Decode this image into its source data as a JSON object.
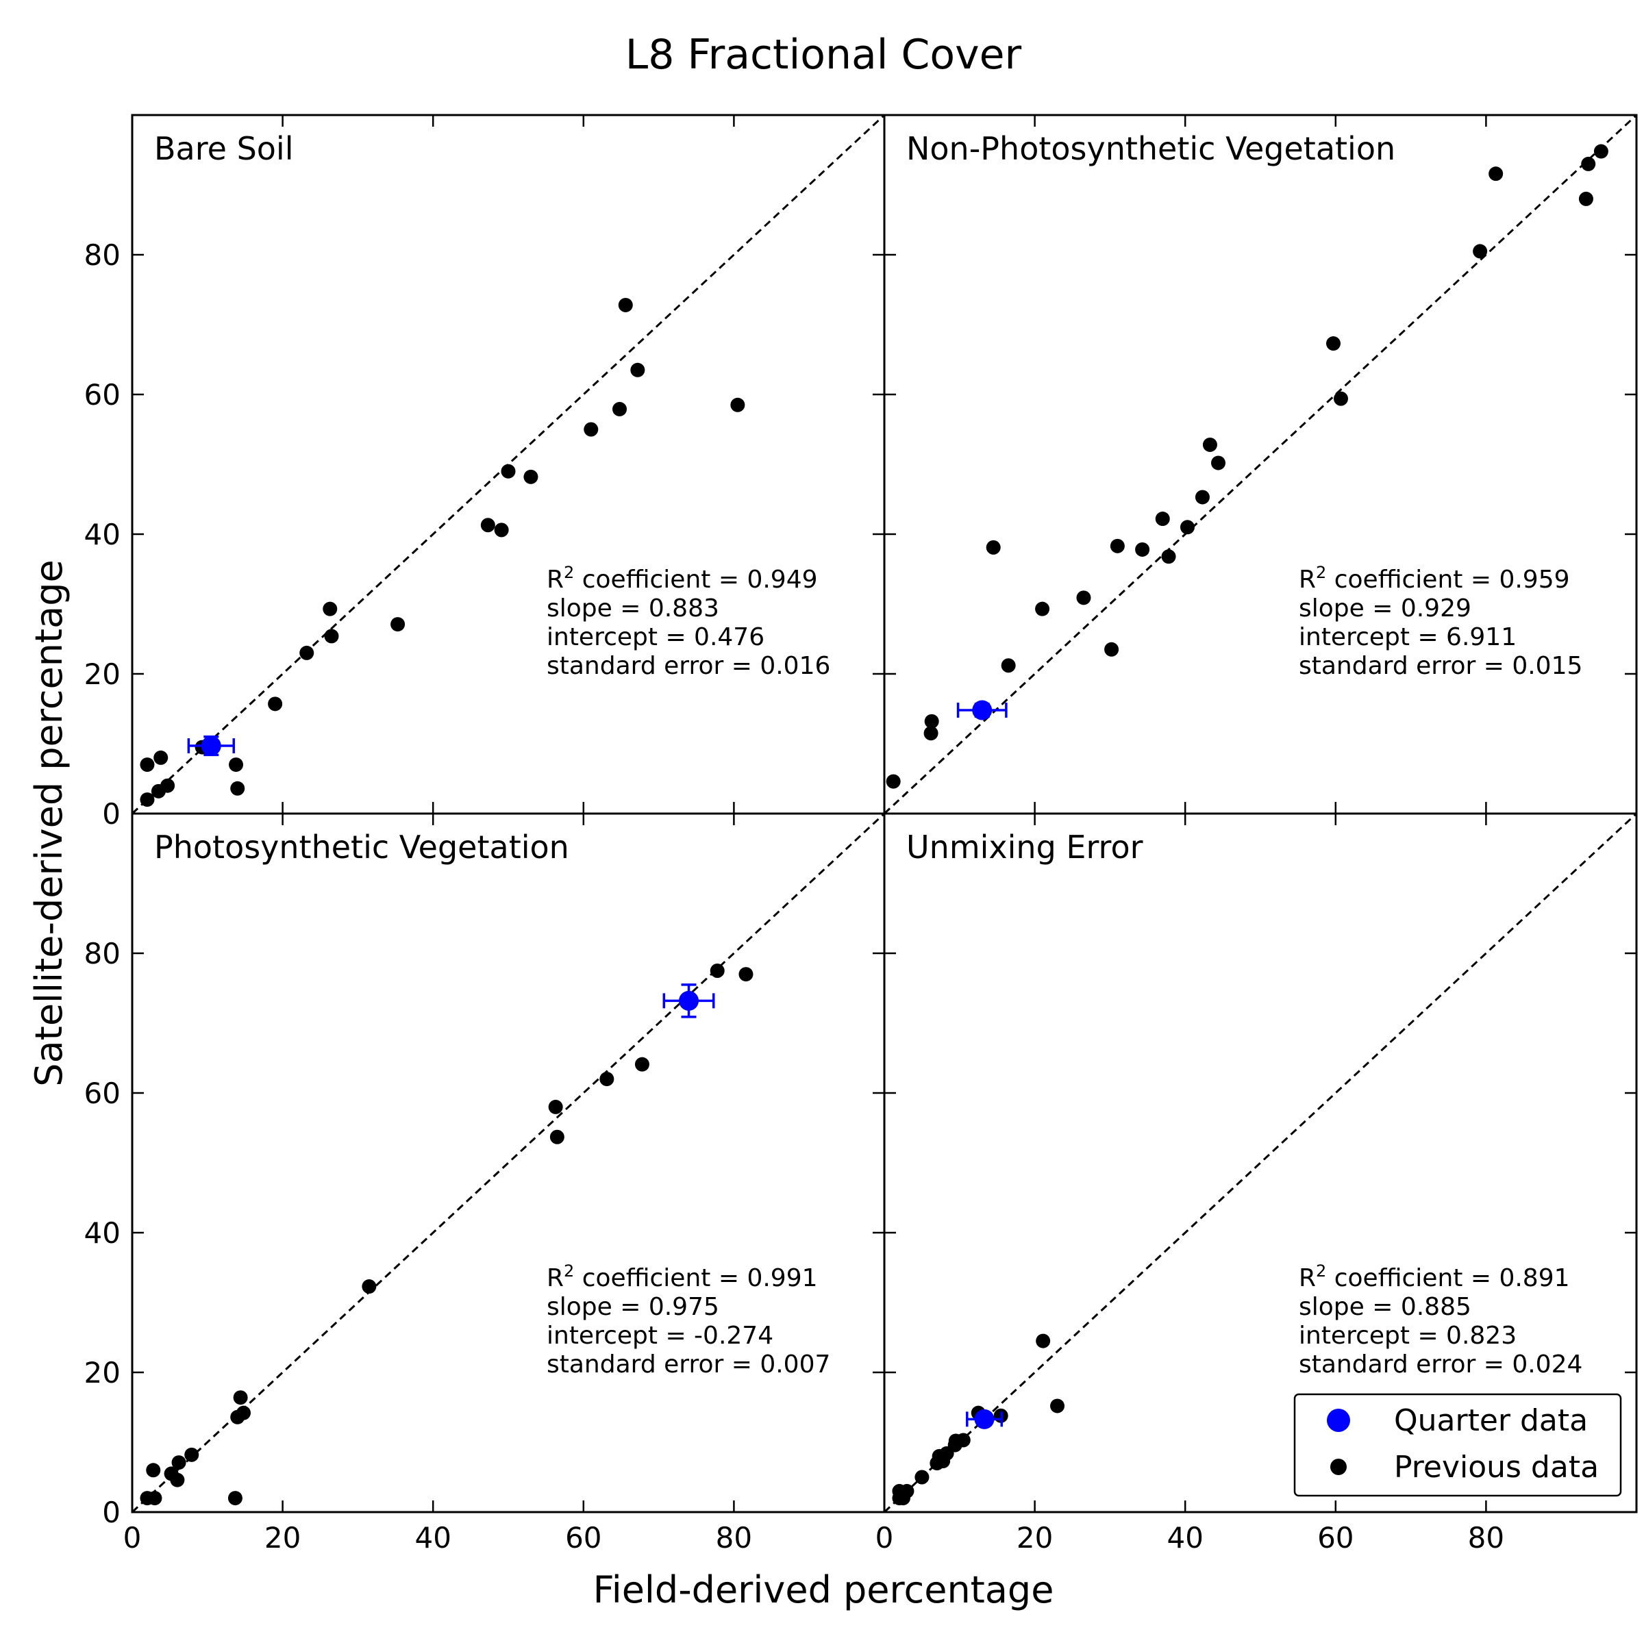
{
  "figure": {
    "title": "L8 Fractional Cover",
    "xlabel": "Field-derived percentage",
    "ylabel": "Satellite-derived percentage",
    "colors": {
      "quarter": "#0000ff",
      "previous": "#000000",
      "axes": "#000000",
      "reference_line": "#000000"
    },
    "legend": {
      "placement": "lower-right of Unmixing Error panel",
      "entries": [
        {
          "label": "Quarter data",
          "color": "#0000ff"
        },
        {
          "label": "Previous data",
          "color": "#000000"
        }
      ]
    }
  },
  "chart_data": [
    {
      "type": "scatter",
      "panel_title": "Bare Soil",
      "xlim": [
        0,
        100
      ],
      "ylim": [
        0,
        100
      ],
      "x_ticks": [
        "0",
        "20",
        "40",
        "60",
        "80"
      ],
      "y_ticks": [
        "0",
        "20",
        "40",
        "60",
        "80"
      ],
      "reference_line": "1:1",
      "stats": {
        "r2": "0.949",
        "slope": "0.883",
        "intercept": "0.476",
        "standard_error": "0.016"
      },
      "quarter": {
        "x": 10.5,
        "y": 9.7,
        "xerr": 3.0,
        "yerr": 1.3
      },
      "previous": [
        [
          2,
          2
        ],
        [
          2,
          7
        ],
        [
          3.5,
          3.2
        ],
        [
          3.8,
          8
        ],
        [
          4.7,
          4
        ],
        [
          9.3,
          9.5
        ],
        [
          13.8,
          7
        ],
        [
          14,
          3.6
        ],
        [
          19,
          15.7
        ],
        [
          23.2,
          23
        ],
        [
          26.3,
          29.3
        ],
        [
          26.5,
          25.4
        ],
        [
          35.3,
          27.1
        ],
        [
          47.3,
          41.3
        ],
        [
          49.1,
          40.6
        ],
        [
          50,
          49
        ],
        [
          53,
          48.2
        ],
        [
          61,
          55
        ],
        [
          64.8,
          57.9
        ],
        [
          65.6,
          72.8
        ],
        [
          67.2,
          63.5
        ],
        [
          80.5,
          58.5
        ]
      ]
    },
    {
      "type": "scatter",
      "panel_title": "Non-Photosynthetic Vegetation",
      "xlim": [
        0,
        100
      ],
      "ylim": [
        0,
        100
      ],
      "x_ticks": [
        "0",
        "20",
        "40",
        "60",
        "80"
      ],
      "y_ticks": [
        "0",
        "20",
        "40",
        "60",
        "80"
      ],
      "reference_line": "1:1",
      "stats": {
        "r2": "0.959",
        "slope": "0.929",
        "intercept": "6.911",
        "standard_error": "0.015"
      },
      "quarter": {
        "x": 13,
        "y": 14.8,
        "xerr": 3.2,
        "yerr": 0.9
      },
      "previous": [
        [
          1.2,
          4.6
        ],
        [
          6.2,
          11.5
        ],
        [
          6.3,
          13.2
        ],
        [
          14.5,
          38.1
        ],
        [
          16.5,
          21.2
        ],
        [
          21,
          29.3
        ],
        [
          26.5,
          30.9
        ],
        [
          30.2,
          23.5
        ],
        [
          31,
          38.3
        ],
        [
          34.3,
          37.8
        ],
        [
          37,
          42.2
        ],
        [
          37.8,
          36.8
        ],
        [
          40.3,
          41
        ],
        [
          42.3,
          45.3
        ],
        [
          43.3,
          52.8
        ],
        [
          44.4,
          50.2
        ],
        [
          59.7,
          67.3
        ],
        [
          60.7,
          59.4
        ],
        [
          79.2,
          80.5
        ],
        [
          81.3,
          91.6
        ],
        [
          93.3,
          88
        ],
        [
          93.6,
          93
        ],
        [
          95.3,
          94.8
        ]
      ]
    },
    {
      "type": "scatter",
      "panel_title": "Photosynthetic Vegetation",
      "xlim": [
        0,
        100
      ],
      "ylim": [
        0,
        100
      ],
      "x_ticks": [
        "0",
        "20",
        "40",
        "60",
        "80"
      ],
      "y_ticks": [
        "0",
        "20",
        "40",
        "60",
        "80"
      ],
      "reference_line": "1:1",
      "stats": {
        "r2": "0.991",
        "slope": "0.975",
        "intercept": "-0.274",
        "standard_error": "0.007"
      },
      "quarter": {
        "x": 74,
        "y": 73.2,
        "xerr": 3.3,
        "yerr": 2.3
      },
      "previous": [
        [
          2,
          2
        ],
        [
          2.8,
          6
        ],
        [
          3,
          2
        ],
        [
          5.2,
          5.5
        ],
        [
          6,
          4.6
        ],
        [
          6.2,
          7.1
        ],
        [
          7.9,
          8.2
        ],
        [
          13.7,
          2
        ],
        [
          14,
          13.6
        ],
        [
          14.4,
          16.4
        ],
        [
          14.8,
          14.2
        ],
        [
          31.5,
          32.3
        ],
        [
          56.3,
          58
        ],
        [
          56.5,
          53.7
        ],
        [
          63.1,
          62
        ],
        [
          67.8,
          64.1
        ],
        [
          77.8,
          77.5
        ],
        [
          81.6,
          77
        ]
      ]
    },
    {
      "type": "scatter",
      "panel_title": "Unmixing Error",
      "xlim": [
        0,
        100
      ],
      "ylim": [
        0,
        100
      ],
      "x_ticks": [
        "0",
        "20",
        "40",
        "60",
        "80"
      ],
      "y_ticks": [
        "0",
        "20",
        "40",
        "60",
        "80"
      ],
      "reference_line": "1:1",
      "stats": {
        "r2": "0.891",
        "slope": "0.885",
        "intercept": "0.823",
        "standard_error": "0.024"
      },
      "quarter": {
        "x": 13.3,
        "y": 13.3,
        "xerr": 2.3,
        "yerr": 0.8
      },
      "previous": [
        [
          2,
          2
        ],
        [
          2,
          3
        ],
        [
          2.5,
          2
        ],
        [
          3,
          3
        ],
        [
          5,
          5
        ],
        [
          7,
          7
        ],
        [
          7.3,
          8
        ],
        [
          7.8,
          7.3
        ],
        [
          8.3,
          8.4
        ],
        [
          9.4,
          9.6
        ],
        [
          9.5,
          10.2
        ],
        [
          10.5,
          10.3
        ],
        [
          12.5,
          14.2
        ],
        [
          15.5,
          13.8
        ],
        [
          21.1,
          24.5
        ],
        [
          23,
          15.2
        ]
      ]
    }
  ]
}
